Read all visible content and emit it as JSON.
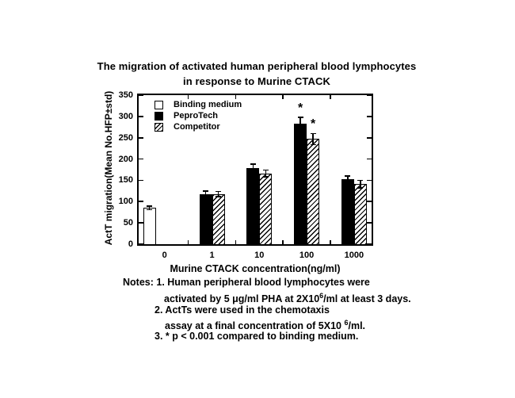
{
  "figure": {
    "title_line1": "The migration of activated human peripheral blood lymphocytes",
    "title_line2": "in response to Murine CTACK"
  },
  "chart_data": {
    "type": "bar",
    "title": "The migration of activated human peripheral blood lymphocytes in response to Murine CTACK",
    "xlabel": "Murine CTACK concentration(ng/ml)",
    "ylabel": "ActT migration(Mean No.HFP±std)",
    "categories": [
      "0",
      "1",
      "10",
      "100",
      "1000"
    ],
    "ylim": [
      0,
      350
    ],
    "ytick_step": 50,
    "grid": false,
    "legend_position": "top-left",
    "significance_marker": "*",
    "series": [
      {
        "name": "Binding medium",
        "style": "open",
        "values": [
          85,
          null,
          null,
          null,
          null
        ],
        "errors": [
          4,
          null,
          null,
          null,
          null
        ],
        "significant": [
          false,
          false,
          false,
          false,
          false
        ]
      },
      {
        "name": "PeproTech",
        "style": "solid",
        "values": [
          null,
          118,
          178,
          283,
          152
        ],
        "errors": [
          null,
          7,
          10,
          15,
          8
        ],
        "significant": [
          false,
          false,
          false,
          true,
          false
        ]
      },
      {
        "name": "Competitor",
        "style": "hatched",
        "values": [
          null,
          118,
          166,
          247,
          141
        ],
        "errors": [
          null,
          6,
          8,
          13,
          9
        ],
        "significant": [
          false,
          false,
          false,
          true,
          false
        ]
      }
    ]
  },
  "notes": {
    "line1": "Notes: 1. Human peripheral blood lymphocytes were",
    "line2_pre": "activated by 5 μg/ml PHA at 2X10",
    "line2_sup": "6",
    "line2_post": "/ml at least 3 days.",
    "line3": "2. ActTs were used in the chemotaxis",
    "line4_pre": "assay at a final concentration of 5X10 ",
    "line4_sup": "6",
    "line4_post": "/ml.",
    "line5": "3. * p < 0.001 compared to binding medium."
  },
  "colors": {
    "foreground": "#000000",
    "background": "#ffffff"
  }
}
